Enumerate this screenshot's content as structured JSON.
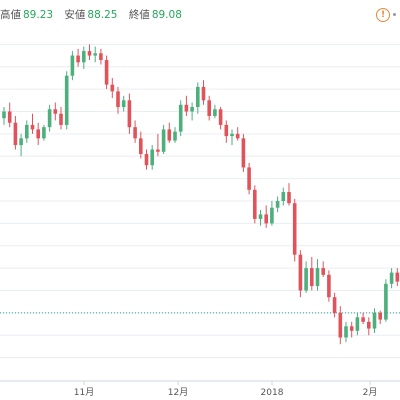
{
  "header": {
    "high_label": "高値",
    "high_value": "89.23",
    "low_label": "安値",
    "low_value": "88.25",
    "close_label": "終値",
    "close_value": "89.08",
    "warning_glyph": "!"
  },
  "colors": {
    "up": "#4caf7c",
    "down": "#e0535b",
    "grid": "#e9eef3",
    "ref": "#2aa198"
  },
  "chart_data": {
    "type": "candlestick",
    "x_ticks": [
      "11月",
      "12月",
      "2018",
      "2月"
    ],
    "reference_line": 80.0,
    "ylim": [
      77.0,
      93.0
    ],
    "candles": [
      [
        88.7,
        89.2,
        88.4,
        89.0
      ],
      [
        89.0,
        89.4,
        88.3,
        88.5
      ],
      [
        88.5,
        88.8,
        87.3,
        87.5
      ],
      [
        87.5,
        88.0,
        87.0,
        87.8
      ],
      [
        87.8,
        88.6,
        87.6,
        88.4
      ],
      [
        88.4,
        88.9,
        88.0,
        88.2
      ],
      [
        88.2,
        88.5,
        87.5,
        87.8
      ],
      [
        87.8,
        88.4,
        87.7,
        88.3
      ],
      [
        88.3,
        89.3,
        88.1,
        89.1
      ],
      [
        89.1,
        89.4,
        88.6,
        88.9
      ],
      [
        88.9,
        89.2,
        88.2,
        88.4
      ],
      [
        88.4,
        90.8,
        88.2,
        90.6
      ],
      [
        90.6,
        91.7,
        90.4,
        91.5
      ],
      [
        91.5,
        91.8,
        91.0,
        91.2
      ],
      [
        91.2,
        91.9,
        90.9,
        91.7
      ],
      [
        91.7,
        92.0,
        91.3,
        91.5
      ],
      [
        91.5,
        91.9,
        91.2,
        91.6
      ],
      [
        91.6,
        91.8,
        91.1,
        91.3
      ],
      [
        91.3,
        91.5,
        90.0,
        90.2
      ],
      [
        90.2,
        90.5,
        89.6,
        89.9
      ],
      [
        89.9,
        90.1,
        88.9,
        89.2
      ],
      [
        89.2,
        89.7,
        89.0,
        89.5
      ],
      [
        89.5,
        89.8,
        88.0,
        88.3
      ],
      [
        88.3,
        88.6,
        87.6,
        87.8
      ],
      [
        87.8,
        88.1,
        86.9,
        87.1
      ],
      [
        87.1,
        87.3,
        86.4,
        86.6
      ],
      [
        86.6,
        87.5,
        86.4,
        87.3
      ],
      [
        87.3,
        88.0,
        87.0,
        87.2
      ],
      [
        87.2,
        88.4,
        87.1,
        88.2
      ],
      [
        88.2,
        88.5,
        87.6,
        87.7
      ],
      [
        87.7,
        88.3,
        87.6,
        88.1
      ],
      [
        88.1,
        89.5,
        87.9,
        89.3
      ],
      [
        89.3,
        89.7,
        88.8,
        89.0
      ],
      [
        89.0,
        89.4,
        88.6,
        89.2
      ],
      [
        89.2,
        90.3,
        88.9,
        90.1
      ],
      [
        90.1,
        90.4,
        89.3,
        89.5
      ],
      [
        89.5,
        89.7,
        88.6,
        88.8
      ],
      [
        88.8,
        89.3,
        88.7,
        89.1
      ],
      [
        89.1,
        89.2,
        88.2,
        88.4
      ],
      [
        88.4,
        88.6,
        87.6,
        87.9
      ],
      [
        87.9,
        88.2,
        87.5,
        88.0
      ],
      [
        88.0,
        88.3,
        87.7,
        87.8
      ],
      [
        87.8,
        88.0,
        86.3,
        86.5
      ],
      [
        86.5,
        86.7,
        85.3,
        85.5
      ],
      [
        85.5,
        85.7,
        84.0,
        84.2
      ],
      [
        84.2,
        84.6,
        83.9,
        84.4
      ],
      [
        84.4,
        84.8,
        83.8,
        84.0
      ],
      [
        84.0,
        85.0,
        83.9,
        84.7
      ],
      [
        84.7,
        85.2,
        84.5,
        85.0
      ],
      [
        85.0,
        85.6,
        84.8,
        85.4
      ],
      [
        85.4,
        85.8,
        84.8,
        84.9
      ],
      [
        84.9,
        85.1,
        82.3,
        82.6
      ],
      [
        82.6,
        82.8,
        80.7,
        81.0
      ],
      [
        81.0,
        82.3,
        80.9,
        82.0
      ],
      [
        82.0,
        82.5,
        81.0,
        81.2
      ],
      [
        81.2,
        82.4,
        81.0,
        82.0
      ],
      [
        82.0,
        82.3,
        81.6,
        81.7
      ],
      [
        81.7,
        81.9,
        80.5,
        80.7
      ],
      [
        80.7,
        80.9,
        79.8,
        80.0
      ],
      [
        80.0,
        80.3,
        78.6,
        78.9
      ],
      [
        78.9,
        79.6,
        78.7,
        79.4
      ],
      [
        79.4,
        79.6,
        78.9,
        79.2
      ],
      [
        79.2,
        80.0,
        79.0,
        79.8
      ],
      [
        79.8,
        80.0,
        79.5,
        79.6
      ],
      [
        79.6,
        79.8,
        79.0,
        79.3
      ],
      [
        79.3,
        80.2,
        79.1,
        80.0
      ],
      [
        80.0,
        80.1,
        79.5,
        79.7
      ],
      [
        79.7,
        81.5,
        79.6,
        81.3
      ],
      [
        81.3,
        82.0,
        81.1,
        81.8
      ],
      [
        81.8,
        82.0,
        81.2,
        81.4
      ]
    ]
  }
}
